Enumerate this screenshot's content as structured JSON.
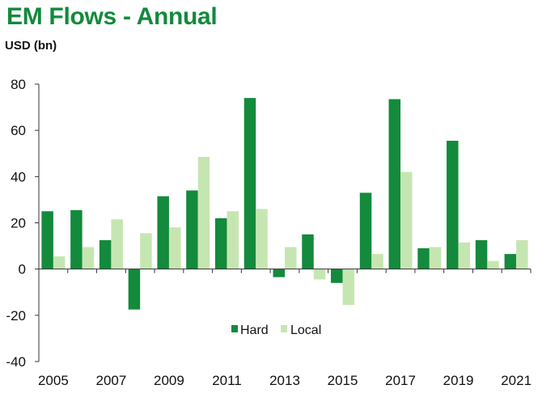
{
  "chart_data": {
    "type": "bar",
    "title": "EM Flows - Annual",
    "ylabel": "USD (bn)",
    "xlabel": "",
    "categories": [
      "2005",
      "2006",
      "2007",
      "2008",
      "2009",
      "2010",
      "2011",
      "2012",
      "2013",
      "2014",
      "2015",
      "2016",
      "2017",
      "2018",
      "2019",
      "2020",
      "2021"
    ],
    "x_tick_labels": [
      "2005",
      "2007",
      "2009",
      "2011",
      "2013",
      "2015",
      "2017",
      "2019",
      "2021"
    ],
    "ylim": [
      -40,
      80
    ],
    "yticks": [
      -40,
      -20,
      0,
      20,
      40,
      60,
      80
    ],
    "grid": false,
    "legend_position": "bottom-center",
    "series": [
      {
        "name": "Hard",
        "color": "#138a3c",
        "values": [
          25,
          25.5,
          12.5,
          -17.5,
          31.5,
          34,
          22,
          74,
          -3.5,
          15,
          -6,
          33,
          73.5,
          9,
          55.5,
          12.5,
          6.5
        ]
      },
      {
        "name": "Local",
        "color": "#c6e6b1",
        "values": [
          5.5,
          9.5,
          21.5,
          15.5,
          18,
          48.5,
          25,
          26,
          9.5,
          -4.5,
          -15.5,
          6.5,
          42,
          9.5,
          11.5,
          3.5,
          12.5
        ]
      }
    ]
  }
}
